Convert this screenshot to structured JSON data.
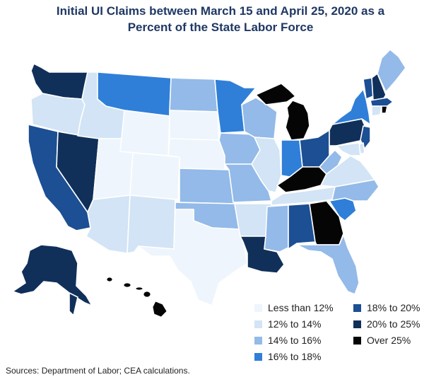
{
  "title": {
    "line1": "Initial UI Claims between March 15 and April 25, 2020 as a",
    "line2": "Percent of the State Labor Force"
  },
  "legend": [
    {
      "label": "Less than 12%",
      "color": "#eef5fc"
    },
    {
      "label": "12% to 14%",
      "color": "#d2e4f5"
    },
    {
      "label": "14% to 16%",
      "color": "#93bae8"
    },
    {
      "label": "16% to 18%",
      "color": "#2f7fd8"
    },
    {
      "label": "18% to 20%",
      "color": "#1c4f93"
    },
    {
      "label": "20% to 25%",
      "color": "#10305a"
    },
    {
      "label": "Over 25%",
      "color": "#050505"
    }
  ],
  "source": "Sources: Department of Labor; CEA calculations."
}
